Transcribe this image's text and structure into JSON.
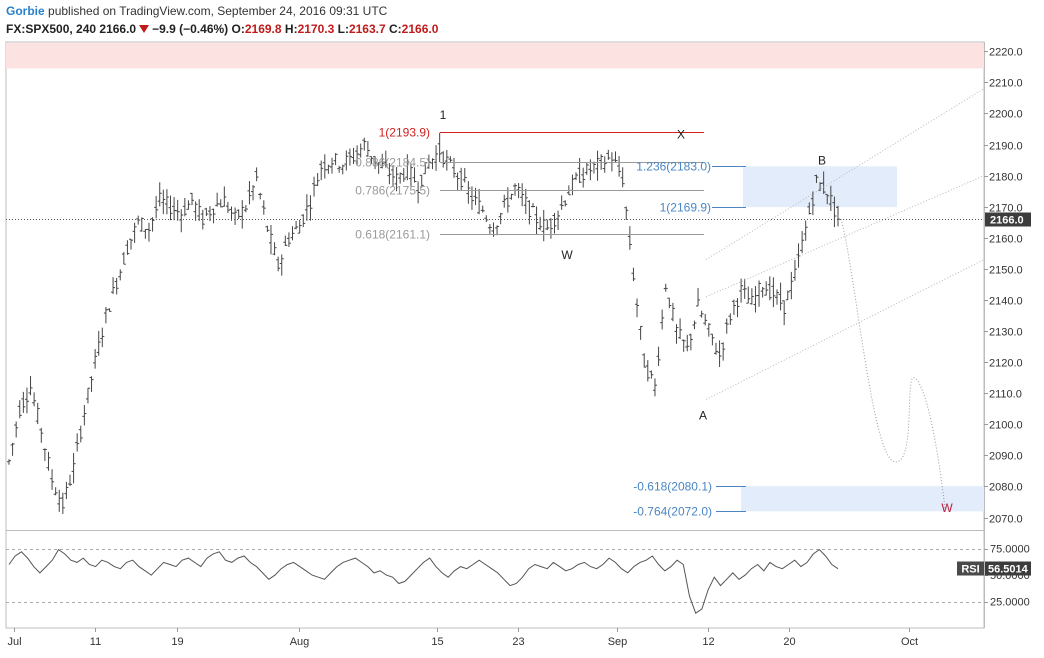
{
  "header": {
    "author": "Gorbie",
    "published_text": "published on TradingView.com, September 24, 2016 09:31 UTC",
    "symbol": "FX:SPX500, 240",
    "last": "2166.0",
    "change": "−9.9 (−0.46%)",
    "o_label": "O:",
    "o_value": "2169.8",
    "h_label": "H:",
    "h_value": "2170.3",
    "l_label": "L:",
    "l_value": "2163.7",
    "c_label": "C:",
    "c_value": "2166.0"
  },
  "colors": {
    "bars": "#444444",
    "fib_gray": "#9a9a9a",
    "fib_blue": "#4a86c5",
    "fib_red": "#d22020",
    "zone_blue": "#e3ecfa",
    "zone_red": "#fde2e2",
    "projection": "#9a9a9a",
    "rsi": "#555555"
  },
  "chart_data": [
    {
      "type": "candlestick",
      "description_of_series": "SPX500 4-hour bars, July - September 2016",
      "ylim": [
        2066,
        2223
      ],
      "y_ticks": [
        2070,
        2080,
        2090,
        2100,
        2110,
        2120,
        2130,
        2140,
        2150,
        2160,
        2170,
        2180,
        2190,
        2200,
        2210,
        2220
      ],
      "x_tick_labels": [
        "Jul",
        "11",
        "19",
        "Aug",
        "15",
        "23",
        "Sep",
        "12",
        "20",
        "Oct"
      ],
      "last_price_label": "2166.0",
      "price_path": [
        [
          "Jul",
          2088
        ],
        [
          "Jul",
          2105
        ],
        [
          "Jul",
          2112
        ],
        [
          "Jul",
          2098
        ],
        [
          "Jul",
          2082
        ],
        [
          "Jul",
          2074
        ],
        [
          "Jul",
          2086
        ],
        [
          "Jul",
          2104
        ],
        [
          "11",
          2120
        ],
        [
          "11",
          2135
        ],
        [
          "11",
          2146
        ],
        [
          "11",
          2157
        ],
        [
          "11",
          2165
        ],
        [
          "19",
          2163
        ],
        [
          "19",
          2172
        ],
        [
          "19",
          2170
        ],
        [
          "19",
          2168
        ],
        [
          "19",
          2172
        ],
        [
          "19",
          2166
        ],
        [
          "19",
          2170
        ],
        [
          "19",
          2172
        ],
        [
          "19",
          2166
        ],
        [
          "19",
          2170
        ],
        [
          "19",
          2179
        ],
        [
          "Aug",
          2163
        ],
        [
          "Aug",
          2151
        ],
        [
          "Aug",
          2160
        ],
        [
          "Aug",
          2164
        ],
        [
          "Aug",
          2172
        ],
        [
          "Aug",
          2183
        ],
        [
          "Aug",
          2185
        ],
        [
          "15",
          2184
        ],
        [
          "15",
          2186
        ],
        [
          "15",
          2190
        ],
        [
          "15",
          2185
        ],
        [
          "15",
          2182
        ],
        [
          "15",
          2179
        ],
        [
          "15",
          2182
        ],
        [
          "15",
          2177
        ],
        [
          "23",
          2184
        ],
        [
          "23",
          2188
        ],
        [
          "23",
          2183
        ],
        [
          "23",
          2179
        ],
        [
          "23",
          2173
        ],
        [
          "23",
          2169
        ],
        [
          "23",
          2163
        ],
        [
          "23",
          2170
        ],
        [
          "23",
          2176
        ],
        [
          "Sep",
          2171
        ],
        [
          "Sep",
          2166
        ],
        [
          "Sep",
          2163
        ],
        [
          "Sep",
          2168
        ],
        [
          "Sep",
          2175
        ],
        [
          "Sep",
          2180
        ],
        [
          "Sep",
          2182
        ],
        [
          "Sep",
          2184
        ],
        [
          "Sep",
          2186
        ],
        [
          "Sep",
          2179
        ],
        [
          "12",
          2148
        ],
        [
          "12",
          2120
        ],
        [
          "12",
          2112
        ],
        [
          "12",
          2145
        ],
        [
          "12",
          2130
        ],
        [
          "12",
          2124
        ],
        [
          "12",
          2138
        ],
        [
          "12",
          2130
        ],
        [
          "12",
          2122
        ],
        [
          "12",
          2135
        ],
        [
          "12",
          2143
        ],
        [
          "20",
          2139
        ],
        [
          "20",
          2145
        ],
        [
          "20",
          2142
        ],
        [
          "20",
          2138
        ],
        [
          "20",
          2148
        ],
        [
          "20",
          2163
        ],
        [
          "20",
          2178
        ],
        [
          "20",
          2175
        ],
        [
          "20",
          2166
        ]
      ],
      "levels": [
        {
          "label": "1(2193.9)",
          "value": 2193.9,
          "color": "red"
        },
        {
          "label": "0.886(2184.5)",
          "value": 2184.5,
          "color": "gray"
        },
        {
          "label": "0.786(2175.5)",
          "value": 2175.5,
          "color": "gray"
        },
        {
          "label": "0.618(2161.1)",
          "value": 2161.1,
          "color": "gray"
        },
        {
          "label": "1.236(2183.0)",
          "value": 2183.0,
          "color": "blue"
        },
        {
          "label": "1(2169.9)",
          "value": 2169.9,
          "color": "blue"
        },
        {
          "label": "-0.618(2080.1)",
          "value": 2080.1,
          "color": "blue"
        },
        {
          "label": "-0.764(2072.0)",
          "value": 2072.0,
          "color": "blue"
        }
      ],
      "wave_labels": [
        {
          "text": "1",
          "price": 2195
        },
        {
          "text": "X",
          "price": 2190
        },
        {
          "text": "W",
          "price": 2157
        },
        {
          "text": "A",
          "price": 2106
        },
        {
          "text": "B",
          "price": 2181
        },
        {
          "text": "W",
          "price": 2073
        }
      ],
      "projection_path": [
        2166,
        2125,
        2088,
        2115,
        2073
      ]
    },
    {
      "type": "line",
      "indicator": "RSI",
      "ylim": [
        0,
        85
      ],
      "y_tick_labels": [
        "75.0000",
        "50.0000",
        "25.0000"
      ],
      "y_ticks": [
        75,
        50,
        25
      ],
      "current_label": "RSI",
      "current_value": "56.5014",
      "values": [
        60,
        68,
        72,
        66,
        58,
        52,
        58,
        64,
        74,
        70,
        64,
        62,
        66,
        60,
        58,
        64,
        62,
        58,
        56,
        62,
        64,
        58,
        54,
        50,
        56,
        62,
        60,
        58,
        64,
        66,
        62,
        58,
        66,
        70,
        72,
        64,
        62,
        66,
        68,
        62,
        58,
        52,
        46,
        50,
        56,
        60,
        62,
        58,
        54,
        50,
        48,
        46,
        52,
        58,
        62,
        64,
        66,
        62,
        58,
        52,
        54,
        50,
        48,
        42,
        44,
        50,
        56,
        62,
        66,
        58,
        52,
        48,
        54,
        58,
        56,
        60,
        64,
        60,
        56,
        52,
        46,
        40,
        42,
        48,
        56,
        60,
        58,
        56,
        62,
        58,
        54,
        56,
        60,
        62,
        58,
        56,
        60,
        66,
        62,
        56,
        52,
        58,
        62,
        64,
        68,
        60,
        54,
        58,
        64,
        60,
        30,
        14,
        18,
        36,
        48,
        40,
        46,
        52,
        46,
        50,
        56,
        60,
        54,
        62,
        58,
        56,
        60,
        64,
        58,
        62,
        70,
        74,
        68,
        60,
        56
      ]
    }
  ]
}
